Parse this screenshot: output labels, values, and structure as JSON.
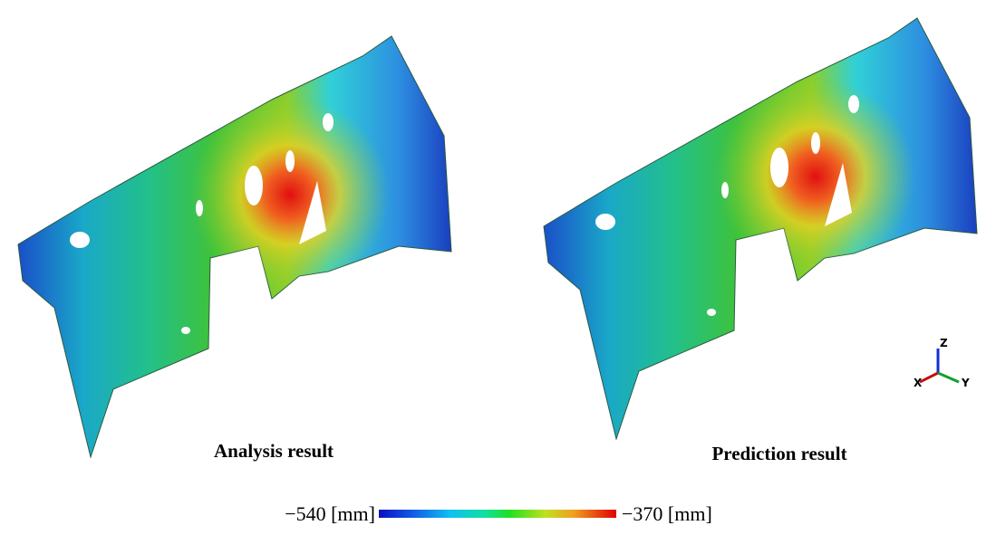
{
  "panels": [
    {
      "caption": "Analysis result"
    },
    {
      "caption": "Prediction result"
    }
  ],
  "colorbar": {
    "min_label": "−540 [mm]",
    "max_label": "−370 [mm]"
  },
  "axes_triad": {
    "z": "Z",
    "x": "X",
    "y": "Y"
  }
}
